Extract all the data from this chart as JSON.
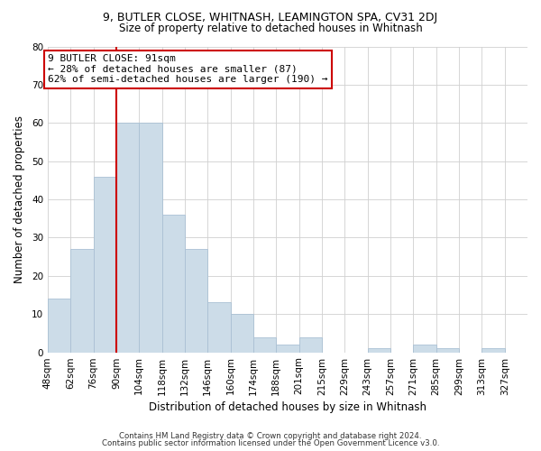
{
  "title": "9, BUTLER CLOSE, WHITNASH, LEAMINGTON SPA, CV31 2DJ",
  "subtitle": "Size of property relative to detached houses in Whitnash",
  "xlabel": "Distribution of detached houses by size in Whitnash",
  "ylabel": "Number of detached properties",
  "bar_labels": [
    "48sqm",
    "62sqm",
    "76sqm",
    "90sqm",
    "104sqm",
    "118sqm",
    "132sqm",
    "146sqm",
    "160sqm",
    "174sqm",
    "188sqm",
    "201sqm",
    "215sqm",
    "229sqm",
    "243sqm",
    "257sqm",
    "271sqm",
    "285sqm",
    "299sqm",
    "313sqm",
    "327sqm"
  ],
  "bar_heights": [
    14,
    27,
    46,
    60,
    60,
    36,
    27,
    13,
    10,
    4,
    2,
    4,
    0,
    0,
    1,
    0,
    2,
    1,
    0,
    1,
    0
  ],
  "bar_color": "#ccdce8",
  "bar_edge_color": "#aac0d4",
  "vline_x_index": 3,
  "vline_color": "#cc0000",
  "ylim": [
    0,
    80
  ],
  "yticks": [
    0,
    10,
    20,
    30,
    40,
    50,
    60,
    70,
    80
  ],
  "annotation_text": "9 BUTLER CLOSE: 91sqm\n← 28% of detached houses are smaller (87)\n62% of semi-detached houses are larger (190) →",
  "annotation_box_color": "#ffffff",
  "annotation_box_edge": "#cc0000",
  "footer_line1": "Contains HM Land Registry data © Crown copyright and database right 2024.",
  "footer_line2": "Contains public sector information licensed under the Open Government Licence v3.0.",
  "background_color": "#ffffff",
  "grid_color": "#d0d0d0",
  "title_fontsize": 9,
  "subtitle_fontsize": 8.5,
  "tick_fontsize": 7.5,
  "axis_label_fontsize": 8.5
}
